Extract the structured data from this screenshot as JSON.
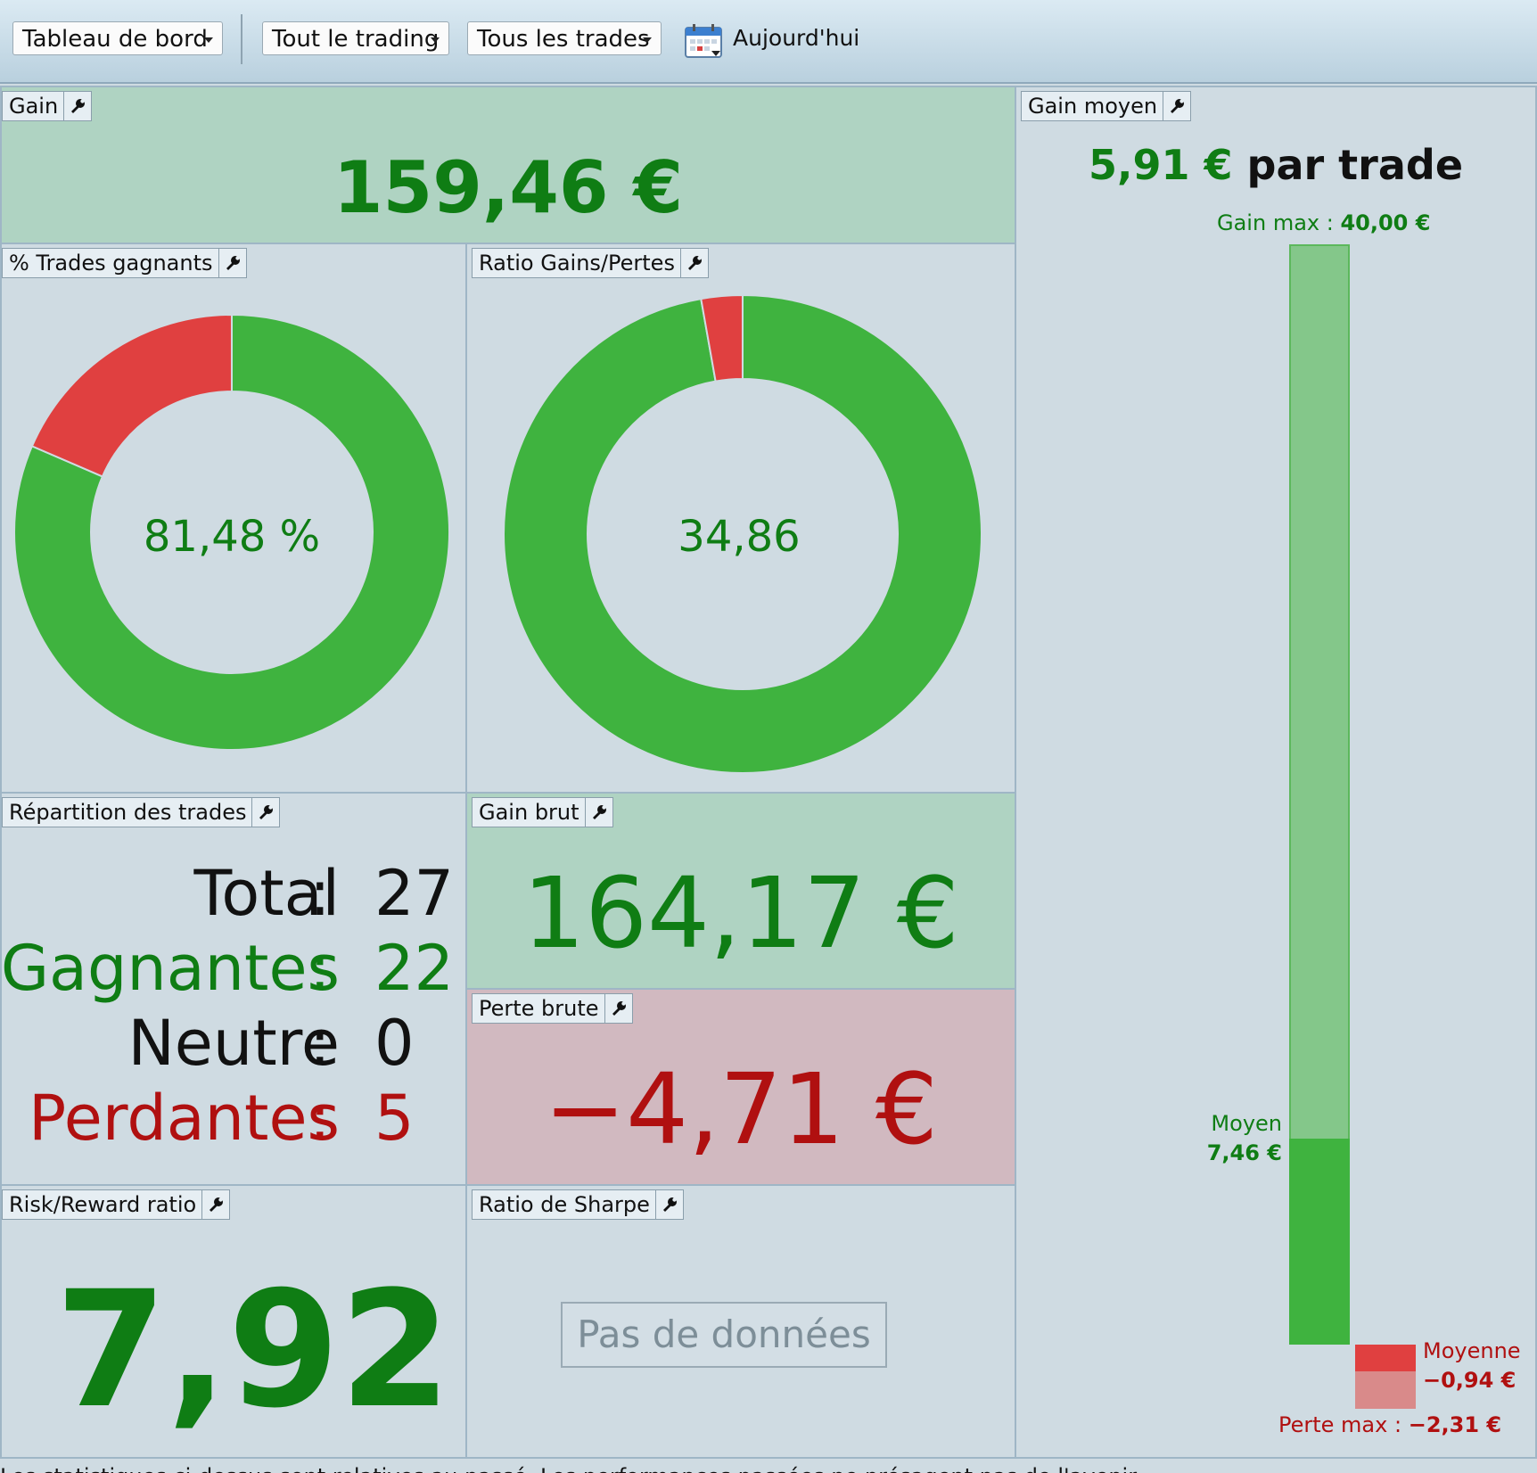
{
  "toolbar": {
    "dashboard_dropdown": "Tableau de bord",
    "trading_dropdown": "Tout le trading",
    "trades_dropdown": "Tous les trades",
    "today_label": "Aujourd'hui"
  },
  "panels": {
    "gain": {
      "title": "Gain",
      "value": "159,46 €"
    },
    "win_rate": {
      "title": "% Trades gagnants",
      "value": "81,48 %",
      "win_fraction": 0.8148
    },
    "win_loss_ratio": {
      "title": "Ratio Gains/Pertes",
      "value": "34,86",
      "win_fraction": 0.9721
    },
    "distribution": {
      "title": "Répartition des trades",
      "rows": [
        {
          "label": "Total",
          "sep": ":",
          "value": "27"
        },
        {
          "label": "Gagnantes",
          "sep": ":",
          "value": "22"
        },
        {
          "label": "Neutre",
          "sep": ":",
          "value": "0"
        },
        {
          "label": "Perdantes",
          "sep": ":",
          "value": "5"
        }
      ]
    },
    "gross_gain": {
      "title": "Gain brut",
      "value": "164,17 €"
    },
    "gross_loss": {
      "title": "Perte brute",
      "value": "−4,71 €"
    },
    "risk_reward": {
      "title": "Risk/Reward ratio",
      "value": "7,92"
    },
    "sharpe": {
      "title": "Ratio de Sharpe",
      "empty_text": "Pas de données"
    },
    "avg_gain": {
      "title": "Gain moyen",
      "headline_value": "5,91 €",
      "headline_suffix": "par trade",
      "max_gain_label": "Gain max :",
      "max_gain_value": "40,00 €",
      "avg_win_label": "Moyen",
      "avg_win_value": "7,46 €",
      "avg_loss_label": "Moyenne",
      "avg_loss_value": "−0,94 €",
      "max_loss_label": "Perte max :",
      "max_loss_value": "−2,31 €"
    }
  },
  "colors": {
    "win": "#3fb33f",
    "loss": "#e04040",
    "win_text": "#0f7d14",
    "loss_text": "#b01010"
  },
  "footer": "Les statistiques ci-dessus sont relatives au passé. Les performances passées ne présagent pas de l'avenir."
}
